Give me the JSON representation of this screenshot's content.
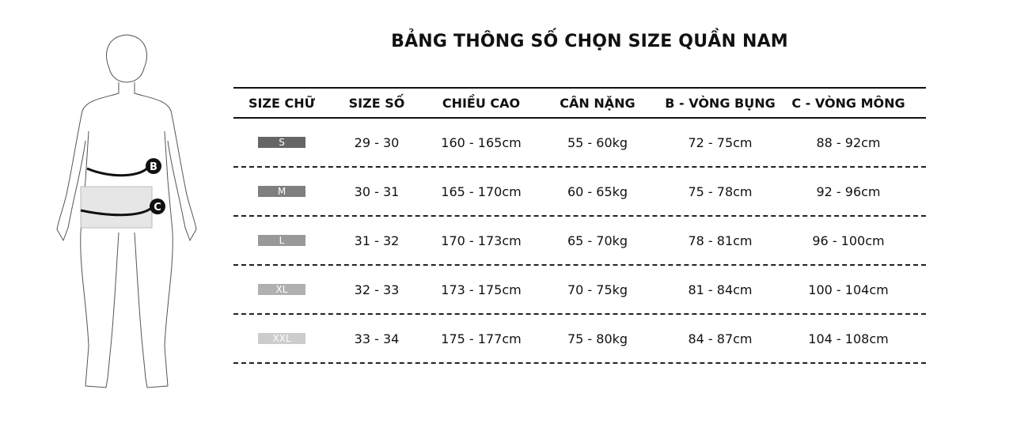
{
  "title": "BẢNG THÔNG SỐ CHỌN SIZE QUẦN NAM",
  "figure": {
    "markers": [
      "B",
      "C"
    ]
  },
  "headers": [
    "SIZE CHỮ",
    "SIZE SỐ",
    "CHIỀU CAO",
    "CÂN NẶNG",
    "B - VÒNG BỤNG",
    "C - VÒNG MÔNG"
  ],
  "rows": [
    {
      "size": "S",
      "badge_color": "#666666",
      "num": "29 - 30",
      "height": "160 - 165cm",
      "weight": "55 - 60kg",
      "waist": "72 - 75cm",
      "hip": "88 - 92cm"
    },
    {
      "size": "M",
      "badge_color": "#7f7f7f",
      "num": "30 - 31",
      "height": "165 - 170cm",
      "weight": "60 - 65kg",
      "waist": "75 - 78cm",
      "hip": "92 - 96cm"
    },
    {
      "size": "L",
      "badge_color": "#999999",
      "num": "31 - 32",
      "height": "170 - 173cm",
      "weight": "65 - 70kg",
      "waist": "78 - 81cm",
      "hip": "96 - 100cm"
    },
    {
      "size": "XL",
      "badge_color": "#b0b0b0",
      "num": "32 - 33",
      "height": "173 - 175cm",
      "weight": "70 - 75kg",
      "waist": "81 - 84cm",
      "hip": "100 - 104cm"
    },
    {
      "size": "XXL",
      "badge_color": "#cccccc",
      "num": "33 - 34",
      "height": "175 - 177cm",
      "weight": "75 - 80kg",
      "waist": "84 - 87cm",
      "hip": "104 - 108cm"
    }
  ]
}
